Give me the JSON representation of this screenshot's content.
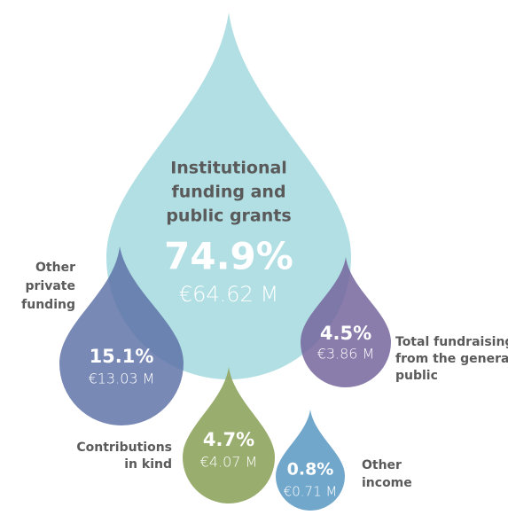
{
  "chart_data": {
    "type": "drops",
    "categories": [
      [
        "Institutional",
        "funding and",
        "public grants"
      ],
      [
        "Other",
        "private",
        "funding"
      ],
      [
        "Total fundraising",
        "from the general",
        "public"
      ],
      [
        "Contributions",
        "in kind"
      ],
      [
        "Other",
        "income"
      ]
    ],
    "values": [
      74.9,
      15.1,
      4.5,
      4.7,
      0.8
    ],
    "value_labels": [
      "74.9%",
      "15.1%",
      "4.5%",
      "4.7%",
      "0.8%"
    ],
    "amounts": [
      64.62,
      13.03,
      3.86,
      4.07,
      0.71
    ],
    "amount_labels": [
      "€64.62 M",
      "€13.03 M",
      "€3.86 M",
      "€4.07 M",
      "€0.71 M"
    ],
    "colors": [
      "#a9dce1",
      "#5b6fa6",
      "#75669d",
      "#94a966",
      "#6aa2c9"
    ]
  }
}
